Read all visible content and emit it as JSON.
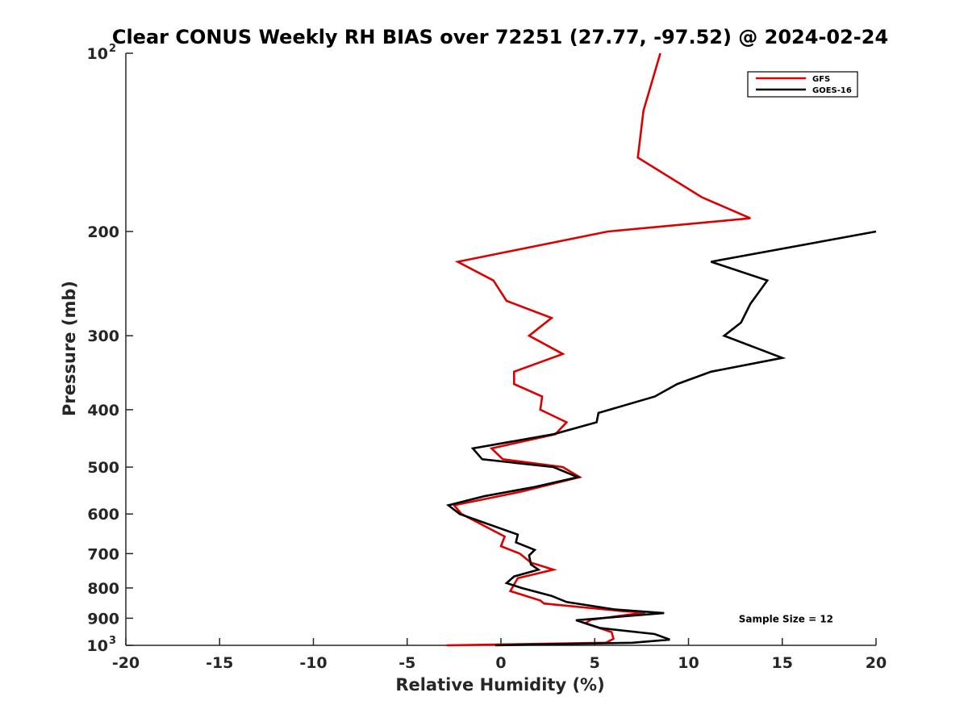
{
  "chart_data": {
    "type": "line",
    "title": "Clear CONUS Weekly RH BIAS over 72251 (27.77, -97.52) @ 2024-02-24",
    "xlabel": "Relative Humidity (%)",
    "ylabel": "Pressure (mb)",
    "xlim": [
      -20,
      20
    ],
    "ylim": [
      1000,
      100
    ],
    "yscale": "log",
    "grid": false,
    "legend_position": "top-right",
    "x_ticks": [
      "-20",
      "-15",
      "-10",
      "-5",
      "0",
      "5",
      "10",
      "15",
      "20"
    ],
    "y_ticks": [
      {
        "value": 100,
        "label": "10",
        "exp": "2"
      },
      {
        "value": 200,
        "label": "200",
        "exp": ""
      },
      {
        "value": 300,
        "label": "300",
        "exp": ""
      },
      {
        "value": 400,
        "label": "400",
        "exp": ""
      },
      {
        "value": 500,
        "label": "500",
        "exp": ""
      },
      {
        "value": 600,
        "label": "600",
        "exp": ""
      },
      {
        "value": 700,
        "label": "700",
        "exp": ""
      },
      {
        "value": 800,
        "label": "800",
        "exp": ""
      },
      {
        "value": 900,
        "label": "900",
        "exp": ""
      },
      {
        "value": 1000,
        "label": "10",
        "exp": "3"
      }
    ],
    "series": [
      {
        "name": "GFS",
        "color": "#dd0000",
        "points": [
          [
            8.5,
            100
          ],
          [
            7.6,
            125
          ],
          [
            7.3,
            150
          ],
          [
            10.7,
            175
          ],
          [
            13.3,
            190
          ],
          [
            5.7,
            200
          ],
          [
            -2.3,
            225
          ],
          [
            -0.4,
            242
          ],
          [
            0.3,
            262
          ],
          [
            2.7,
            280
          ],
          [
            1.5,
            300
          ],
          [
            3.3,
            322
          ],
          [
            0.7,
            345
          ],
          [
            0.7,
            362
          ],
          [
            2.2,
            380
          ],
          [
            2.1,
            400
          ],
          [
            3.5,
            420
          ],
          [
            2.9,
            440
          ],
          [
            -0.5,
            465
          ],
          [
            0.1,
            485
          ],
          [
            3.3,
            500
          ],
          [
            4.2,
            520
          ],
          [
            1.1,
            550
          ],
          [
            -2.5,
            580
          ],
          [
            -2.1,
            600
          ],
          [
            0.2,
            655
          ],
          [
            0.0,
            680
          ],
          [
            1.0,
            700
          ],
          [
            1.6,
            725
          ],
          [
            2.8,
            745
          ],
          [
            0.9,
            770
          ],
          [
            0.5,
            810
          ],
          [
            2.1,
            840
          ],
          [
            2.3,
            850
          ],
          [
            6.4,
            875
          ],
          [
            7.7,
            880
          ],
          [
            4.8,
            905
          ],
          [
            4.5,
            918
          ],
          [
            5.9,
            950
          ],
          [
            6.0,
            975
          ],
          [
            5.6,
            990
          ],
          [
            -2.9,
            1000
          ]
        ]
      },
      {
        "name": "GOES-16",
        "color": "#000000",
        "points": [
          [
            20.0,
            200
          ],
          [
            11.2,
            225
          ],
          [
            14.2,
            242
          ],
          [
            13.3,
            265
          ],
          [
            12.8,
            285
          ],
          [
            11.9,
            300
          ],
          [
            15.0,
            327
          ],
          [
            11.2,
            345
          ],
          [
            9.4,
            362
          ],
          [
            8.2,
            380
          ],
          [
            5.2,
            405
          ],
          [
            5.1,
            420
          ],
          [
            2.8,
            440
          ],
          [
            -1.5,
            465
          ],
          [
            -1.0,
            485
          ],
          [
            2.8,
            500
          ],
          [
            4.1,
            520
          ],
          [
            1.8,
            540
          ],
          [
            -0.9,
            560
          ],
          [
            -2.8,
            580
          ],
          [
            -2.2,
            600
          ],
          [
            0.9,
            650
          ],
          [
            0.8,
            670
          ],
          [
            1.8,
            690
          ],
          [
            1.5,
            705
          ],
          [
            1.6,
            730
          ],
          [
            2.0,
            745
          ],
          [
            0.7,
            765
          ],
          [
            0.3,
            785
          ],
          [
            1.1,
            800
          ],
          [
            2.7,
            825
          ],
          [
            3.5,
            845
          ],
          [
            6.1,
            870
          ],
          [
            8.7,
            882
          ],
          [
            4.0,
            907
          ],
          [
            5.3,
            935
          ],
          [
            8.2,
            957
          ],
          [
            9.0,
            978
          ],
          [
            7.0,
            990
          ],
          [
            -0.3,
            1000
          ]
        ]
      }
    ],
    "annotations": [
      {
        "text": "Sample Size = 12",
        "x": 15.2,
        "y": 900
      }
    ]
  }
}
